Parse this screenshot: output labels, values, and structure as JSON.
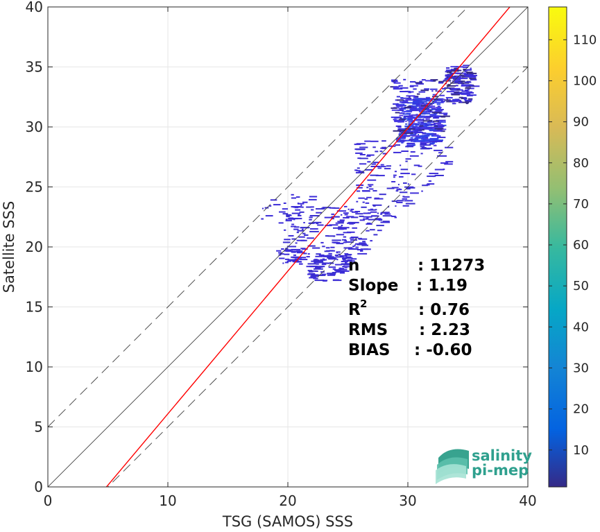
{
  "chart_data": {
    "type": "scatter",
    "subtype": "2d-density-histogram",
    "xlabel": "TSG (SAMOS) SSS",
    "ylabel": "Satellite SSS",
    "xlim": [
      0,
      40
    ],
    "ylim": [
      0,
      40
    ],
    "x_ticks": [
      "0",
      "10",
      "20",
      "30",
      "40"
    ],
    "y_ticks": [
      "0",
      "5",
      "10",
      "15",
      "20",
      "25",
      "30",
      "35",
      "40"
    ],
    "grid": true,
    "colormap": "parula",
    "colorbar": {
      "range": [
        1,
        118
      ],
      "ticks": [
        "10",
        "20",
        "30",
        "40",
        "50",
        "60",
        "70",
        "80",
        "90",
        "100",
        "110"
      ]
    },
    "reference_lines": {
      "one_to_one": {
        "slope": 1,
        "intercept": 0,
        "color": "#404040",
        "style": "solid"
      },
      "upper_envelope": {
        "slope": 1,
        "intercept": 5,
        "color": "#404040",
        "style": "dashed"
      },
      "lower_envelope": {
        "slope": 1,
        "intercept": -5,
        "color": "#404040",
        "style": "dashed"
      },
      "fit": {
        "slope": 1.19,
        "intercept": -5.81,
        "color": "#ff0000",
        "style": "solid"
      }
    },
    "density_regions": [
      {
        "x": [
          29.0,
          32.5
        ],
        "y": [
          28.5,
          32.5
        ],
        "level": "high"
      },
      {
        "x": [
          28.5,
          33.0
        ],
        "y": [
          29.5,
          34.0
        ],
        "level": "medium"
      },
      {
        "x": [
          33.0,
          35.2
        ],
        "y": [
          32.0,
          35.2
        ],
        "level": "medium"
      },
      {
        "x": [
          25.5,
          33.5
        ],
        "y": [
          22.0,
          29.0
        ],
        "level": "low"
      },
      {
        "x": [
          19.5,
          28.0
        ],
        "y": [
          19.5,
          23.5
        ],
        "level": "low"
      },
      {
        "x": [
          21.5,
          27.0
        ],
        "y": [
          17.2,
          19.5
        ],
        "level": "low"
      },
      {
        "x": [
          17.5,
          22.0
        ],
        "y": [
          22.0,
          24.5
        ],
        "level": "sparse"
      },
      {
        "x": [
          19.0,
          21.0
        ],
        "y": [
          18.5,
          20.0
        ],
        "level": "sparse"
      }
    ],
    "stats": [
      {
        "label": "n",
        "value": ": 11273"
      },
      {
        "label": "Slope",
        "value": ": 1.19"
      },
      {
        "label": "R",
        "sup": "2",
        "value": ": 0.76"
      },
      {
        "label": "RMS",
        "value": ": 2.23"
      },
      {
        "label": "BIAS",
        "value": ": -0.60"
      }
    ]
  },
  "logo": {
    "line1": "salinity",
    "line2": "pi-mep"
  },
  "colors": {
    "fit_line": "#ff0000",
    "ref_line": "#404040",
    "logo_teal": "#2fa08e",
    "grid": "#e6e6e6",
    "density_base": "#3b2bd8"
  }
}
